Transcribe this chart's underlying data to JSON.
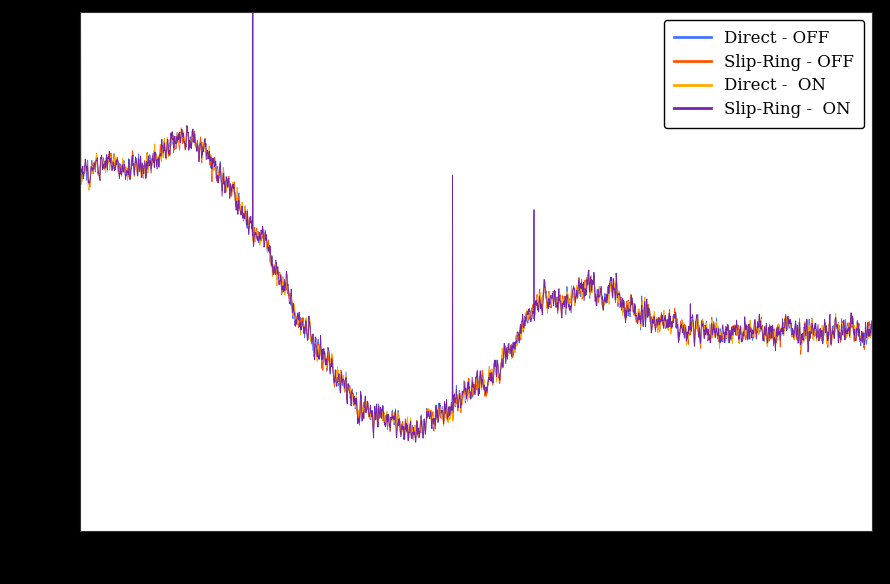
{
  "legend": [
    "Direct - OFF",
    "Slip-Ring - OFF",
    "Direct -  ON",
    "Slip-Ring -  ON"
  ],
  "color_direct_off": "#4477ff",
  "color_sr_off": "#ff5500",
  "color_direct_on": "#ffaa00",
  "color_sr_on": "#7722aa",
  "line_width": 0.6,
  "background_color": "#ffffff",
  "outer_background": "#000000",
  "grid_color": "#cccccc",
  "fig_width": 8.9,
  "fig_height": 5.84,
  "dpi": 100,
  "legend_fontsize": 12,
  "legend_loc": "upper right"
}
